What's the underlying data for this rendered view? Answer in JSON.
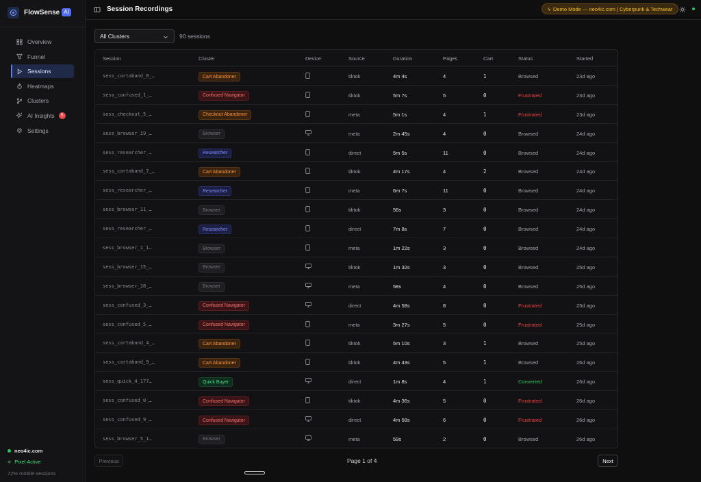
{
  "brand": {
    "name": "FlowSense",
    "badge": "AI"
  },
  "nav": [
    {
      "label": "Overview",
      "icon": "grid-icon"
    },
    {
      "label": "Funnel",
      "icon": "funnel-icon"
    },
    {
      "label": "Sessions",
      "icon": "play-icon",
      "active": true
    },
    {
      "label": "Heatmaps",
      "icon": "flame-icon"
    },
    {
      "label": "Clusters",
      "icon": "branch-icon"
    },
    {
      "label": "AI Insights",
      "icon": "sparkle-icon",
      "badge": "5"
    },
    {
      "label": "Settings",
      "icon": "gear-icon"
    }
  ],
  "sidebar_footer": {
    "domain": "neo4ic.com",
    "pixel": "Pixel Active",
    "mobile": "72% mobile sessions"
  },
  "header": {
    "title": "Session Recordings",
    "demo_pill": "Demo Mode — neo4ic.com | Cyberpunk & Techwear"
  },
  "filter": {
    "selected": "All Clusters",
    "count": "90 sessions"
  },
  "table": {
    "columns": [
      "Session",
      "Cluster",
      "Device",
      "Source",
      "Duration",
      "Pages",
      "Cart",
      "Status",
      "Started"
    ],
    "rows": [
      {
        "session": "sess_cartaband_8_…",
        "cluster": "Cart Abandoner",
        "kind": "cart",
        "device": "mobile",
        "source": "tiktok",
        "duration": "4m 4s",
        "pages": "4",
        "cart": "1",
        "status": "Browsed",
        "started": "23d ago"
      },
      {
        "session": "sess_confused_1_…",
        "cluster": "Confused Navigator",
        "kind": "confused",
        "device": "mobile",
        "source": "tiktok",
        "duration": "5m 7s",
        "pages": "5",
        "cart": "0",
        "status": "Frustrated",
        "started": "23d ago"
      },
      {
        "session": "sess_checkout_5_…",
        "cluster": "Checkout Abandoner",
        "kind": "checkout",
        "device": "mobile",
        "source": "meta",
        "duration": "5m 1s",
        "pages": "4",
        "cart": "1",
        "status": "Frustrated",
        "started": "23d ago"
      },
      {
        "session": "sess_browser_19_…",
        "cluster": "Browser",
        "kind": "browser",
        "device": "desktop",
        "source": "meta",
        "duration": "2m 45s",
        "pages": "4",
        "cart": "0",
        "status": "Browsed",
        "started": "24d ago"
      },
      {
        "session": "sess_researcher_…",
        "cluster": "Researcher",
        "kind": "researcher",
        "device": "mobile",
        "source": "direct",
        "duration": "5m 5s",
        "pages": "11",
        "cart": "0",
        "status": "Browsed",
        "started": "24d ago"
      },
      {
        "session": "sess_cartaband_7_…",
        "cluster": "Cart Abandoner",
        "kind": "cart",
        "device": "mobile",
        "source": "tiktok",
        "duration": "4m 17s",
        "pages": "4",
        "cart": "2",
        "status": "Browsed",
        "started": "24d ago"
      },
      {
        "session": "sess_researcher_…",
        "cluster": "Researcher",
        "kind": "researcher",
        "device": "mobile",
        "source": "meta",
        "duration": "6m 7s",
        "pages": "11",
        "cart": "0",
        "status": "Browsed",
        "started": "24d ago"
      },
      {
        "session": "sess_browser_11_…",
        "cluster": "Browser",
        "kind": "browser",
        "device": "mobile",
        "source": "tiktok",
        "duration": "56s",
        "pages": "3",
        "cart": "0",
        "status": "Browsed",
        "started": "24d ago"
      },
      {
        "session": "sess_researcher_…",
        "cluster": "Researcher",
        "kind": "researcher",
        "device": "mobile",
        "source": "direct",
        "duration": "7m 8s",
        "pages": "7",
        "cart": "0",
        "status": "Browsed",
        "started": "24d ago"
      },
      {
        "session": "sess_browser_1_1…",
        "cluster": "Browser",
        "kind": "browser",
        "device": "mobile",
        "source": "meta",
        "duration": "1m 22s",
        "pages": "3",
        "cart": "0",
        "status": "Browsed",
        "started": "24d ago"
      },
      {
        "session": "sess_browser_15_…",
        "cluster": "Browser",
        "kind": "browser",
        "device": "desktop",
        "source": "tiktok",
        "duration": "1m 32s",
        "pages": "3",
        "cart": "0",
        "status": "Browsed",
        "started": "25d ago"
      },
      {
        "session": "sess_browser_10_…",
        "cluster": "Browser",
        "kind": "browser",
        "device": "desktop",
        "source": "meta",
        "duration": "58s",
        "pages": "4",
        "cart": "0",
        "status": "Browsed",
        "started": "25d ago"
      },
      {
        "session": "sess_confused_3_…",
        "cluster": "Confused Navigator",
        "kind": "confused",
        "device": "desktop",
        "source": "direct",
        "duration": "4m 58s",
        "pages": "8",
        "cart": "0",
        "status": "Frustrated",
        "started": "25d ago"
      },
      {
        "session": "sess_confused_5_…",
        "cluster": "Confused Navigator",
        "kind": "confused",
        "device": "mobile",
        "source": "meta",
        "duration": "3m 27s",
        "pages": "5",
        "cart": "0",
        "status": "Frustrated",
        "started": "25d ago"
      },
      {
        "session": "sess_cartaband_4_…",
        "cluster": "Cart Abandoner",
        "kind": "cart",
        "device": "mobile",
        "source": "tiktok",
        "duration": "5m 10s",
        "pages": "3",
        "cart": "1",
        "status": "Browsed",
        "started": "25d ago"
      },
      {
        "session": "sess_cartaband_9_…",
        "cluster": "Cart Abandoner",
        "kind": "cart",
        "device": "mobile",
        "source": "tiktok",
        "duration": "4m 43s",
        "pages": "5",
        "cart": "1",
        "status": "Browsed",
        "started": "26d ago"
      },
      {
        "session": "sess_quick_4_177…",
        "cluster": "Quick Buyer",
        "kind": "quick",
        "device": "desktop",
        "source": "direct",
        "duration": "1m 8s",
        "pages": "4",
        "cart": "1",
        "status": "Converted",
        "started": "26d ago"
      },
      {
        "session": "sess_confused_0_…",
        "cluster": "Confused Navigator",
        "kind": "confused",
        "device": "mobile",
        "source": "tiktok",
        "duration": "4m 36s",
        "pages": "5",
        "cart": "0",
        "status": "Frustrated",
        "started": "26d ago"
      },
      {
        "session": "sess_confused_9_…",
        "cluster": "Confused Navigator",
        "kind": "confused",
        "device": "desktop",
        "source": "direct",
        "duration": "4m 58s",
        "pages": "6",
        "cart": "0",
        "status": "Frustrated",
        "started": "26d ago"
      },
      {
        "session": "sess_browser_5_1…",
        "cluster": "Browser",
        "kind": "browser",
        "device": "desktop",
        "source": "meta",
        "duration": "59s",
        "pages": "2",
        "cart": "0",
        "status": "Browsed",
        "started": "26d ago"
      }
    ]
  },
  "pagination": {
    "prev": "Previous",
    "info": "Page 1 of 4",
    "next": "Next"
  },
  "colors": {
    "accent": "#5b7cfa",
    "frustrated": "#ef4444",
    "converted": "#22c55e",
    "demo": "#fbbf24"
  }
}
